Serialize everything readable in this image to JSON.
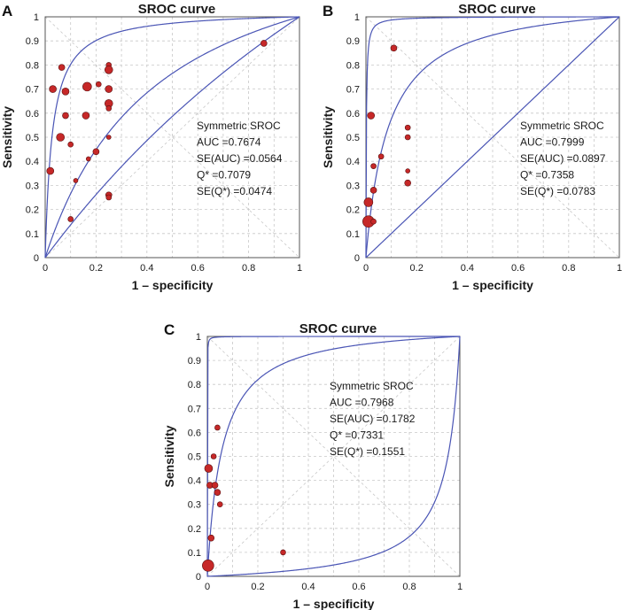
{
  "figure": {
    "panel_labels": [
      "A",
      "B",
      "C"
    ]
  },
  "chart_data": [
    {
      "panel": "A",
      "type": "scatter",
      "title": "SROC curve",
      "xlabel": "1 – specificity",
      "ylabel": "Sensitivity",
      "xlim": [
        0,
        1
      ],
      "ylim": [
        0,
        1
      ],
      "xticks": [
        "0",
        "0.2",
        "0.4",
        "0.6",
        "0.8",
        "1"
      ],
      "yticks": [
        "0",
        "0.1",
        "0.2",
        "0.3",
        "0.4",
        "0.5",
        "0.6",
        "0.7",
        "0.8",
        "0.9",
        "1"
      ],
      "annotation": [
        "Symmetric SROC",
        "AUC =0.7674",
        "SE(AUC) =0.0564",
        "Q* =0.7079",
        "SE(Q*) =0.0474"
      ],
      "curve_params": [
        3.6,
        1.18,
        0.35
      ],
      "points": [
        {
          "x": 0.02,
          "y": 0.36,
          "w": 4.0
        },
        {
          "x": 0.03,
          "y": 0.7,
          "w": 4.0
        },
        {
          "x": 0.06,
          "y": 0.5,
          "w": 4.5
        },
        {
          "x": 0.065,
          "y": 0.79,
          "w": 3.5
        },
        {
          "x": 0.08,
          "y": 0.69,
          "w": 4.0
        },
        {
          "x": 0.08,
          "y": 0.59,
          "w": 3.5
        },
        {
          "x": 0.1,
          "y": 0.47,
          "w": 3.0
        },
        {
          "x": 0.1,
          "y": 0.16,
          "w": 3.0
        },
        {
          "x": 0.12,
          "y": 0.32,
          "w": 2.5
        },
        {
          "x": 0.16,
          "y": 0.59,
          "w": 4.0
        },
        {
          "x": 0.165,
          "y": 0.71,
          "w": 5.0
        },
        {
          "x": 0.17,
          "y": 0.41,
          "w": 2.5
        },
        {
          "x": 0.2,
          "y": 0.44,
          "w": 3.5
        },
        {
          "x": 0.21,
          "y": 0.72,
          "w": 3.0
        },
        {
          "x": 0.25,
          "y": 0.8,
          "w": 3.0
        },
        {
          "x": 0.25,
          "y": 0.78,
          "w": 4.5
        },
        {
          "x": 0.25,
          "y": 0.7,
          "w": 4.0
        },
        {
          "x": 0.25,
          "y": 0.64,
          "w": 4.5
        },
        {
          "x": 0.25,
          "y": 0.62,
          "w": 3.0
        },
        {
          "x": 0.25,
          "y": 0.5,
          "w": 2.5
        },
        {
          "x": 0.25,
          "y": 0.26,
          "w": 3.5
        },
        {
          "x": 0.25,
          "y": 0.25,
          "w": 3.0
        },
        {
          "x": 0.86,
          "y": 0.89,
          "w": 3.5
        }
      ]
    },
    {
      "panel": "B",
      "type": "scatter",
      "title": "SROC curve",
      "xlabel": "1 – specificity",
      "ylabel": "Sensitivity",
      "xlim": [
        0,
        1
      ],
      "ylim": [
        0,
        1
      ],
      "xticks": [
        "0",
        "0.2",
        "0.4",
        "0.6",
        "0.8",
        "1"
      ],
      "yticks": [
        "0",
        "0.1",
        "0.2",
        "0.3",
        "0.4",
        "0.5",
        "0.6",
        "0.7",
        "0.8",
        "0.9",
        "1"
      ],
      "annotation": [
        "Symmetric SROC",
        "AUC =0.7999",
        "SE(AUC) =0.0897",
        "Q* =0.7358",
        "SE(Q*) =0.0783"
      ],
      "curve_params": [
        6.5,
        2.5,
        0.0
      ],
      "points": [
        {
          "x": 0.01,
          "y": 0.23,
          "w": 5.0
        },
        {
          "x": 0.01,
          "y": 0.15,
          "w": 6.5
        },
        {
          "x": 0.02,
          "y": 0.59,
          "w": 4.0
        },
        {
          "x": 0.03,
          "y": 0.38,
          "w": 3.0
        },
        {
          "x": 0.03,
          "y": 0.28,
          "w": 3.5
        },
        {
          "x": 0.03,
          "y": 0.15,
          "w": 3.0
        },
        {
          "x": 0.06,
          "y": 0.42,
          "w": 3.0
        },
        {
          "x": 0.11,
          "y": 0.87,
          "w": 3.5
        },
        {
          "x": 0.165,
          "y": 0.54,
          "w": 3.0
        },
        {
          "x": 0.165,
          "y": 0.5,
          "w": 3.0
        },
        {
          "x": 0.165,
          "y": 0.36,
          "w": 2.5
        },
        {
          "x": 0.165,
          "y": 0.31,
          "w": 3.5
        }
      ]
    },
    {
      "panel": "C",
      "type": "scatter",
      "title": "SROC curve",
      "xlabel": "1 – specificity",
      "ylabel": "Sensitivity",
      "xlim": [
        0,
        1
      ],
      "ylim": [
        0,
        1
      ],
      "xticks": [
        "0",
        "0.2",
        "0.4",
        "0.6",
        "0.8",
        "1"
      ],
      "yticks": [
        "0",
        "0.1",
        "0.2",
        "0.3",
        "0.4",
        "0.5",
        "0.6",
        "0.7",
        "0.8",
        "0.9",
        "1"
      ],
      "annotation": [
        "Symmetric SROC",
        "AUC =0.7968",
        "SE(AUC) =0.1782",
        "Q* =0.7331",
        "SE(Q*) =0.1551"
      ],
      "curve_params": [
        9.0,
        2.9,
        -3.0
      ],
      "points": [
        {
          "x": 0.003,
          "y": 0.045,
          "w": 6.5
        },
        {
          "x": 0.005,
          "y": 0.45,
          "w": 4.5
        },
        {
          "x": 0.01,
          "y": 0.38,
          "w": 3.5
        },
        {
          "x": 0.015,
          "y": 0.16,
          "w": 3.5
        },
        {
          "x": 0.025,
          "y": 0.5,
          "w": 3.0
        },
        {
          "x": 0.03,
          "y": 0.38,
          "w": 3.5
        },
        {
          "x": 0.04,
          "y": 0.35,
          "w": 3.5
        },
        {
          "x": 0.04,
          "y": 0.62,
          "w": 3.0
        },
        {
          "x": 0.05,
          "y": 0.3,
          "w": 3.0
        },
        {
          "x": 0.3,
          "y": 0.1,
          "w": 3.0
        }
      ]
    }
  ]
}
